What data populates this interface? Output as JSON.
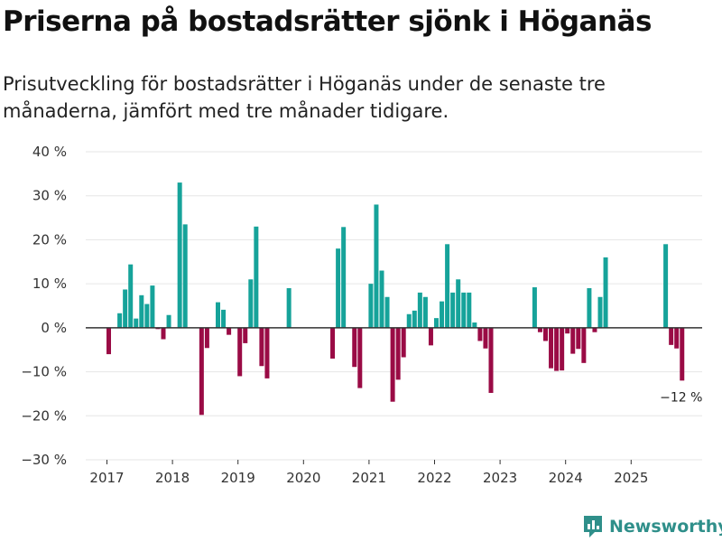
{
  "title": "Priserna på bostadsrätter sjönk i Höganäs",
  "subtitle": "Prisutveckling för bostadsrätter i Höganäs under de senaste tre månaderna, jämfört med tre månader tidigare.",
  "brand": {
    "name": "Newsworthy",
    "icon": "newsworthy-logo-icon"
  },
  "colors": {
    "positive": "#16a39a",
    "negative": "#9a0b45",
    "grid": "#e6e6e6",
    "zero": "#333333"
  },
  "chart_data": {
    "type": "bar",
    "title": "Priserna på bostadsrätter sjönk i Höganäs",
    "xlabel": "",
    "ylabel": "",
    "ylim": [
      -30,
      40
    ],
    "y_ticks": [
      40,
      30,
      20,
      10,
      0,
      -10,
      -20,
      -30
    ],
    "y_tick_labels": [
      "40 %",
      "30 %",
      "20 %",
      "10 %",
      "0 %",
      "−10 %",
      "−20 %",
      "−30 %"
    ],
    "x_tick_labels": [
      "2017",
      "2018",
      "2019",
      "2020",
      "2021",
      "2022",
      "2023",
      "2024",
      "2025"
    ],
    "x_tick_index": [
      0,
      12,
      24,
      36,
      48,
      60,
      72,
      84,
      96
    ],
    "start": "2017-01",
    "values": [
      -6,
      null,
      3.3,
      8.7,
      14.4,
      2.1,
      7.4,
      5.4,
      9.6,
      -0.3,
      -2.6,
      2.9,
      null,
      33,
      23.5,
      null,
      null,
      -19.8,
      -4.6,
      null,
      5.8,
      4.1,
      -1.6,
      null,
      -11,
      -3.5,
      11,
      23,
      -8.7,
      -11.5,
      null,
      null,
      null,
      9,
      null,
      null,
      null,
      null,
      null,
      null,
      null,
      -7,
      18,
      22.9,
      null,
      -8.9,
      -13.7,
      null,
      10,
      28,
      13,
      7,
      -16.8,
      -11.8,
      -6.7,
      3.1,
      3.9,
      8,
      7,
      -4,
      2.2,
      6,
      19,
      8,
      11,
      8,
      8,
      1.2,
      -3,
      -4.7,
      -14.8,
      null,
      null,
      null,
      null,
      null,
      null,
      null,
      9.2,
      -1,
      -3,
      -9.2,
      -9.8,
      -9.7,
      -1.3,
      -5.9,
      -4.8,
      -8,
      9,
      -1,
      7,
      16,
      null,
      null,
      null,
      null,
      null,
      null,
      null,
      null,
      null,
      null,
      19,
      -3.9,
      -4.7,
      -12
    ],
    "annotations": [
      {
        "label": "−12 %",
        "index": 105,
        "value": -12
      }
    ]
  }
}
